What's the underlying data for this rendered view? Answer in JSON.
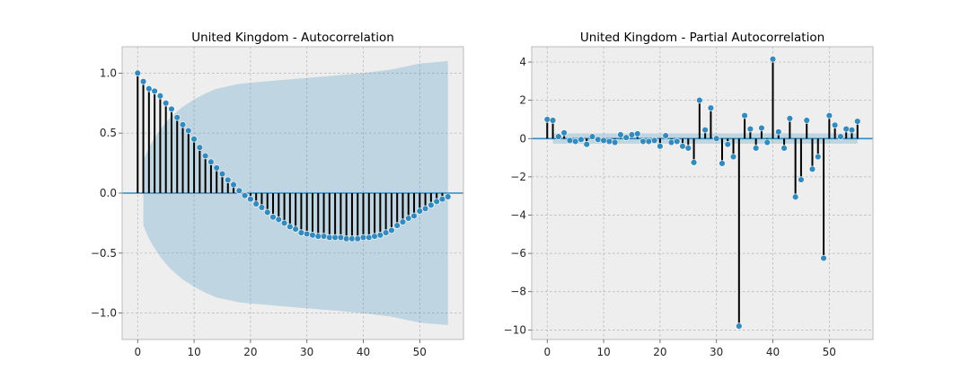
{
  "chart_data": [
    {
      "type": "stem",
      "title": "United Kingdom - Autocorrelation",
      "xlim": [
        -2.75,
        57.75
      ],
      "ylim": [
        -1.22,
        1.22
      ],
      "xticks": [
        0,
        10,
        20,
        30,
        40,
        50
      ],
      "xtick_labels": [
        "0",
        "10",
        "20",
        "30",
        "40",
        "50"
      ],
      "yticks": [
        -1.0,
        -0.5,
        0.0,
        0.5,
        1.0
      ],
      "ytick_labels": [
        "−1.0",
        "−0.5",
        "0.0",
        "0.5",
        "1.0"
      ],
      "lags": [
        0,
        1,
        2,
        3,
        4,
        5,
        6,
        7,
        8,
        9,
        10,
        11,
        12,
        13,
        14,
        15,
        16,
        17,
        18,
        19,
        20,
        21,
        22,
        23,
        24,
        25,
        26,
        27,
        28,
        29,
        30,
        31,
        32,
        33,
        34,
        35,
        36,
        37,
        38,
        39,
        40,
        41,
        42,
        43,
        44,
        45,
        46,
        47,
        48,
        49,
        50,
        51,
        52,
        53,
        54,
        55
      ],
      "values": [
        1.0,
        0.93,
        0.87,
        0.85,
        0.81,
        0.75,
        0.7,
        0.63,
        0.57,
        0.52,
        0.45,
        0.38,
        0.31,
        0.26,
        0.21,
        0.16,
        0.11,
        0.07,
        0.02,
        -0.02,
        -0.05,
        -0.09,
        -0.12,
        -0.16,
        -0.2,
        -0.22,
        -0.25,
        -0.28,
        -0.3,
        -0.33,
        -0.34,
        -0.35,
        -0.36,
        -0.36,
        -0.37,
        -0.37,
        -0.37,
        -0.38,
        -0.38,
        -0.38,
        -0.37,
        -0.37,
        -0.36,
        -0.35,
        -0.33,
        -0.31,
        -0.27,
        -0.24,
        -0.21,
        -0.19,
        -0.15,
        -0.13,
        -0.1,
        -0.07,
        -0.05,
        -0.03
      ],
      "confidence_band": {
        "lags": [
          1,
          2,
          3,
          4,
          5,
          6,
          7,
          8,
          9,
          10,
          12,
          14,
          16,
          18,
          20,
          25,
          30,
          35,
          40,
          45,
          50,
          55
        ],
        "upper": [
          0.27,
          0.38,
          0.46,
          0.53,
          0.59,
          0.64,
          0.68,
          0.72,
          0.75,
          0.78,
          0.83,
          0.87,
          0.89,
          0.91,
          0.92,
          0.94,
          0.96,
          0.98,
          1.0,
          1.03,
          1.08,
          1.1
        ],
        "lower": [
          -0.27,
          -0.38,
          -0.46,
          -0.53,
          -0.59,
          -0.64,
          -0.68,
          -0.72,
          -0.75,
          -0.78,
          -0.83,
          -0.87,
          -0.89,
          -0.91,
          -0.92,
          -0.94,
          -0.96,
          -0.98,
          -1.0,
          -1.03,
          -1.08,
          -1.1
        ]
      }
    },
    {
      "type": "stem",
      "title": "United Kingdom - Partial Autocorrelation",
      "xlim": [
        -2.75,
        57.75
      ],
      "ylim": [
        -10.5,
        4.8
      ],
      "xticks": [
        0,
        10,
        20,
        30,
        40,
        50
      ],
      "xtick_labels": [
        "0",
        "10",
        "20",
        "30",
        "40",
        "50"
      ],
      "yticks": [
        -10,
        -8,
        -6,
        -4,
        -2,
        0,
        2,
        4
      ],
      "ytick_labels": [
        "−10",
        "−8",
        "−6",
        "−4",
        "−2",
        "0",
        "2",
        "4"
      ],
      "lags": [
        0,
        1,
        2,
        3,
        4,
        5,
        6,
        7,
        8,
        9,
        10,
        11,
        12,
        13,
        14,
        15,
        16,
        17,
        18,
        19,
        20,
        21,
        22,
        23,
        24,
        25,
        26,
        27,
        28,
        29,
        30,
        31,
        32,
        33,
        34,
        35,
        36,
        37,
        38,
        39,
        40,
        41,
        42,
        43,
        44,
        45,
        46,
        47,
        48,
        49,
        50,
        51,
        52,
        53,
        54,
        55
      ],
      "values": [
        1.0,
        0.95,
        0.1,
        0.3,
        -0.1,
        -0.15,
        -0.05,
        -0.3,
        0.1,
        -0.05,
        -0.1,
        -0.15,
        -0.2,
        0.2,
        0.05,
        0.2,
        0.25,
        -0.15,
        -0.15,
        -0.1,
        -0.4,
        0.15,
        -0.2,
        -0.15,
        -0.4,
        -0.5,
        -1.25,
        2.0,
        0.45,
        1.6,
        0.0,
        -1.3,
        -0.3,
        -0.95,
        -9.8,
        1.2,
        0.5,
        -0.5,
        0.55,
        -0.2,
        4.15,
        0.35,
        -0.5,
        1.05,
        -3.05,
        -2.15,
        0.95,
        -1.6,
        -0.95,
        -6.25,
        1.2,
        0.7,
        0.1,
        0.5,
        0.45,
        0.9
      ],
      "confidence_band": {
        "lags": [
          1,
          55
        ],
        "upper": [
          0.27,
          0.27
        ],
        "lower": [
          -0.27,
          -0.27
        ]
      }
    }
  ]
}
